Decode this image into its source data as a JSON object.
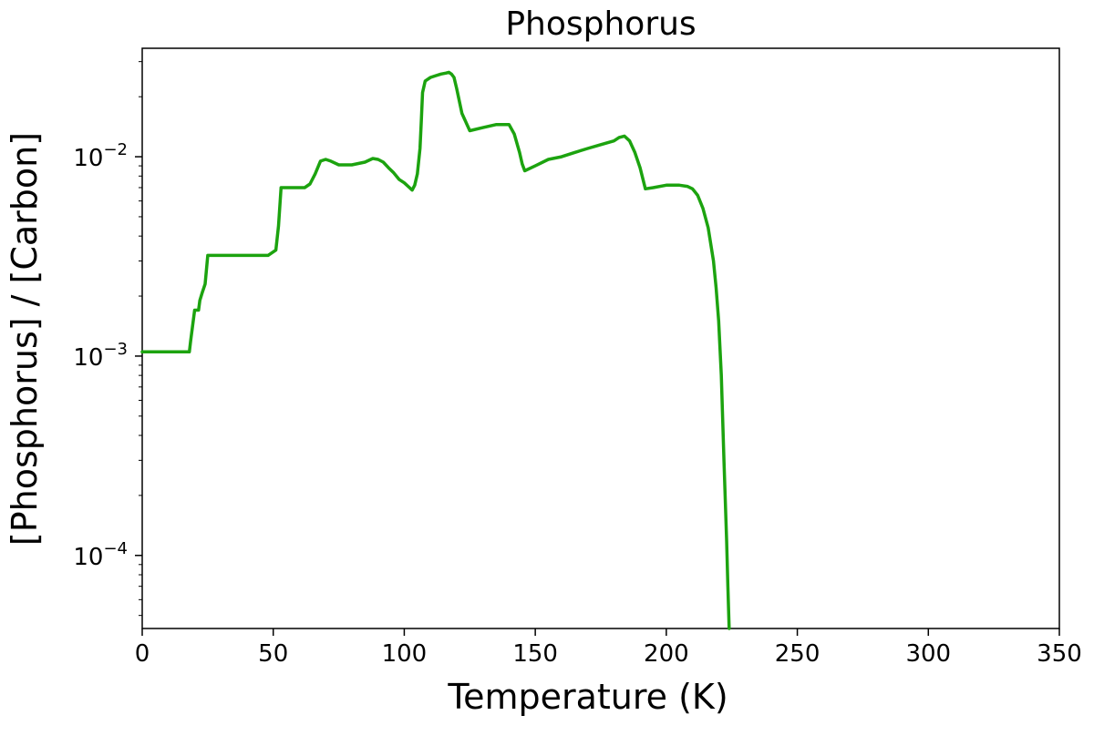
{
  "chart_data": {
    "type": "line",
    "title": "Phosphorus",
    "xlabel": "Temperature (K)",
    "ylabel": "[Phosphorus] / [Carbon]",
    "xlim": [
      0,
      350
    ],
    "ylim": [
      4.3e-05,
      0.035
    ],
    "yscale": "log",
    "grid": false,
    "x_ticks": [
      0,
      50,
      100,
      150,
      200,
      250,
      300,
      350
    ],
    "x_tick_labels": [
      "0",
      "50",
      "100",
      "150",
      "200",
      "250",
      "300",
      "350"
    ],
    "y_ticks": [
      0.001,
      0.01,
      0.0001
    ],
    "y_tick_labels": [
      "10",
      "10",
      "10"
    ],
    "y_tick_exponents": [
      "−3",
      "−2",
      "−4"
    ],
    "series": [
      {
        "color": "#1ca30f",
        "x": [
          0,
          18,
          18.5,
          20,
          21.5,
          22,
          23,
          24,
          25,
          26,
          48,
          51,
          52,
          53,
          62,
          64,
          66,
          68,
          70,
          72,
          75,
          80,
          85,
          88,
          90,
          92,
          94,
          96,
          98,
          100,
          102,
          103,
          104,
          105,
          106,
          106.5,
          107,
          108,
          110,
          112,
          114,
          116,
          117,
          118,
          119,
          120,
          122,
          125,
          130,
          135,
          140,
          142,
          144,
          145,
          146,
          150,
          155,
          160,
          165,
          170,
          175,
          180,
          182,
          184,
          186,
          188,
          190,
          192,
          195,
          200,
          205,
          208,
          210,
          212,
          214,
          216,
          218,
          219,
          220,
          221,
          222,
          223,
          223.5,
          224
        ],
        "y": [
          0.00105,
          0.00105,
          0.0012,
          0.0017,
          0.0017,
          0.0019,
          0.0021,
          0.0023,
          0.0032,
          0.0032,
          0.0032,
          0.0034,
          0.0045,
          0.007,
          0.007,
          0.0073,
          0.0082,
          0.0095,
          0.0097,
          0.0095,
          0.0091,
          0.0091,
          0.0094,
          0.0098,
          0.0097,
          0.0094,
          0.0088,
          0.0083,
          0.0077,
          0.0074,
          0.007,
          0.0068,
          0.0072,
          0.0082,
          0.011,
          0.015,
          0.021,
          0.024,
          0.025,
          0.0255,
          0.026,
          0.0263,
          0.0265,
          0.026,
          0.025,
          0.022,
          0.0165,
          0.0135,
          0.014,
          0.0145,
          0.0145,
          0.013,
          0.0105,
          0.0092,
          0.0085,
          0.009,
          0.0097,
          0.01,
          0.0105,
          0.011,
          0.0115,
          0.012,
          0.0125,
          0.0127,
          0.012,
          0.0105,
          0.0088,
          0.0069,
          0.007,
          0.0072,
          0.0072,
          0.0071,
          0.0069,
          0.0064,
          0.0055,
          0.0044,
          0.003,
          0.0022,
          0.0015,
          0.0008,
          0.0003,
          0.00012,
          7e-05,
          4.3e-05
        ]
      }
    ]
  }
}
